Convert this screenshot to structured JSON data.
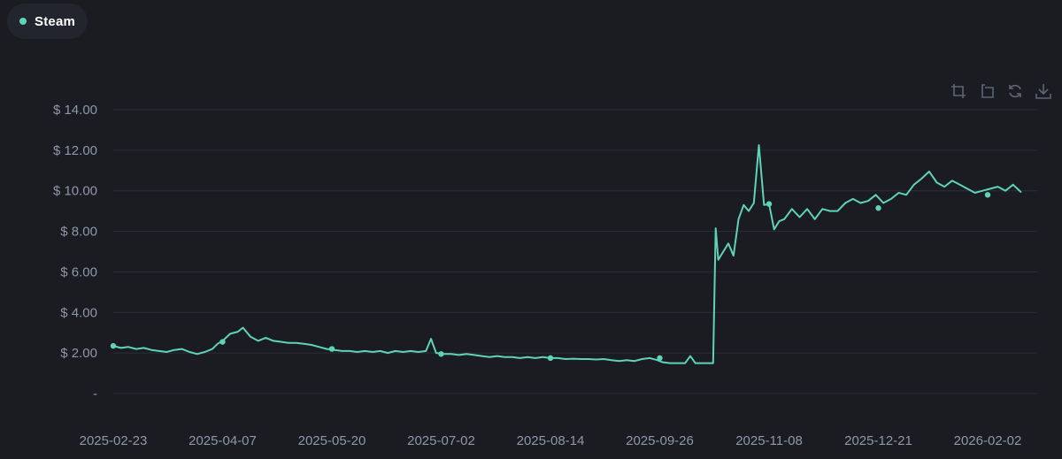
{
  "legend": {
    "label": "Steam",
    "color": "#5fd3b8"
  },
  "toolbox": [
    {
      "icon": "zoom-area-icon"
    },
    {
      "icon": "zoom-reset-icon"
    },
    {
      "icon": "restore-icon"
    },
    {
      "icon": "download-icon"
    }
  ],
  "colors": {
    "line": "#5fd3b8",
    "grid": "#2b2e37",
    "axis_text": "#8f97ab",
    "background": "#1a1c22"
  },
  "chart_data": {
    "type": "line",
    "series": [
      {
        "name": "Steam",
        "values": [
          [
            "2025-02-23",
            2.35
          ],
          [
            "2025-02-26",
            2.25
          ],
          [
            "2025-03-01",
            2.3
          ],
          [
            "2025-03-04",
            2.2
          ],
          [
            "2025-03-07",
            2.25
          ],
          [
            "2025-03-10",
            2.15
          ],
          [
            "2025-03-13",
            2.1
          ],
          [
            "2025-03-16",
            2.05
          ],
          [
            "2025-03-19",
            2.15
          ],
          [
            "2025-03-22",
            2.2
          ],
          [
            "2025-03-25",
            2.05
          ],
          [
            "2025-03-28",
            1.95
          ],
          [
            "2025-03-31",
            2.05
          ],
          [
            "2025-04-03",
            2.2
          ],
          [
            "2025-04-05",
            2.45
          ],
          [
            "2025-04-07",
            2.6
          ],
          [
            "2025-04-10",
            2.95
          ],
          [
            "2025-04-13",
            3.05
          ],
          [
            "2025-04-15",
            3.25
          ],
          [
            "2025-04-18",
            2.8
          ],
          [
            "2025-04-21",
            2.6
          ],
          [
            "2025-04-24",
            2.75
          ],
          [
            "2025-04-27",
            2.6
          ],
          [
            "2025-04-30",
            2.55
          ],
          [
            "2025-05-03",
            2.5
          ],
          [
            "2025-05-06",
            2.5
          ],
          [
            "2025-05-09",
            2.45
          ],
          [
            "2025-05-12",
            2.4
          ],
          [
            "2025-05-15",
            2.3
          ],
          [
            "2025-05-18",
            2.2
          ],
          [
            "2025-05-21",
            2.15
          ],
          [
            "2025-05-24",
            2.1
          ],
          [
            "2025-05-27",
            2.1
          ],
          [
            "2025-05-30",
            2.05
          ],
          [
            "2025-06-02",
            2.1
          ],
          [
            "2025-06-05",
            2.05
          ],
          [
            "2025-06-08",
            2.1
          ],
          [
            "2025-06-11",
            2.0
          ],
          [
            "2025-06-14",
            2.1
          ],
          [
            "2025-06-17",
            2.05
          ],
          [
            "2025-06-20",
            2.1
          ],
          [
            "2025-06-23",
            2.05
          ],
          [
            "2025-06-26",
            2.1
          ],
          [
            "2025-06-28",
            2.7
          ],
          [
            "2025-06-30",
            2.0
          ],
          [
            "2025-07-03",
            1.95
          ],
          [
            "2025-07-06",
            1.95
          ],
          [
            "2025-07-09",
            1.9
          ],
          [
            "2025-07-12",
            1.95
          ],
          [
            "2025-07-15",
            1.9
          ],
          [
            "2025-07-18",
            1.85
          ],
          [
            "2025-07-21",
            1.8
          ],
          [
            "2025-07-24",
            1.85
          ],
          [
            "2025-07-27",
            1.8
          ],
          [
            "2025-07-30",
            1.8
          ],
          [
            "2025-08-02",
            1.75
          ],
          [
            "2025-08-05",
            1.8
          ],
          [
            "2025-08-08",
            1.75
          ],
          [
            "2025-08-11",
            1.8
          ],
          [
            "2025-08-14",
            1.75
          ],
          [
            "2025-08-17",
            1.75
          ],
          [
            "2025-08-20",
            1.7
          ],
          [
            "2025-08-23",
            1.72
          ],
          [
            "2025-08-26",
            1.7
          ],
          [
            "2025-08-29",
            1.7
          ],
          [
            "2025-09-01",
            1.68
          ],
          [
            "2025-09-04",
            1.7
          ],
          [
            "2025-09-07",
            1.65
          ],
          [
            "2025-09-10",
            1.6
          ],
          [
            "2025-09-13",
            1.65
          ],
          [
            "2025-09-16",
            1.6
          ],
          [
            "2025-09-19",
            1.7
          ],
          [
            "2025-09-22",
            1.75
          ],
          [
            "2025-09-25",
            1.65
          ],
          [
            "2025-09-27",
            1.55
          ],
          [
            "2025-09-30",
            1.5
          ],
          [
            "2025-10-03",
            1.5
          ],
          [
            "2025-10-06",
            1.5
          ],
          [
            "2025-10-08",
            1.85
          ],
          [
            "2025-10-10",
            1.5
          ],
          [
            "2025-10-13",
            1.5
          ],
          [
            "2025-10-16",
            1.5
          ],
          [
            "2025-10-17",
            1.5
          ],
          [
            "2025-10-18",
            8.15
          ],
          [
            "2025-10-19",
            6.6
          ],
          [
            "2025-10-21",
            7.0
          ],
          [
            "2025-10-23",
            7.4
          ],
          [
            "2025-10-25",
            6.8
          ],
          [
            "2025-10-27",
            8.6
          ],
          [
            "2025-10-29",
            9.3
          ],
          [
            "2025-10-31",
            9.0
          ],
          [
            "2025-11-02",
            9.4
          ],
          [
            "2025-11-04",
            12.25
          ],
          [
            "2025-11-06",
            9.3
          ],
          [
            "2025-11-08",
            9.35
          ],
          [
            "2025-11-10",
            8.1
          ],
          [
            "2025-11-12",
            8.5
          ],
          [
            "2025-11-14",
            8.6
          ],
          [
            "2025-11-17",
            9.1
          ],
          [
            "2025-11-20",
            8.7
          ],
          [
            "2025-11-23",
            9.1
          ],
          [
            "2025-11-26",
            8.6
          ],
          [
            "2025-11-29",
            9.1
          ],
          [
            "2025-12-02",
            9.0
          ],
          [
            "2025-12-05",
            9.0
          ],
          [
            "2025-12-08",
            9.4
          ],
          [
            "2025-12-11",
            9.6
          ],
          [
            "2025-12-14",
            9.4
          ],
          [
            "2025-12-17",
            9.5
          ],
          [
            "2025-12-20",
            9.8
          ],
          [
            "2025-12-23",
            9.4
          ],
          [
            "2025-12-26",
            9.6
          ],
          [
            "2025-12-29",
            9.9
          ],
          [
            "2026-01-01",
            9.8
          ],
          [
            "2026-01-04",
            10.3
          ],
          [
            "2026-01-07",
            10.6
          ],
          [
            "2026-01-10",
            10.95
          ],
          [
            "2026-01-13",
            10.4
          ],
          [
            "2026-01-16",
            10.2
          ],
          [
            "2026-01-19",
            10.5
          ],
          [
            "2026-01-22",
            10.3
          ],
          [
            "2026-01-25",
            10.1
          ],
          [
            "2026-01-28",
            9.9
          ],
          [
            "2026-01-31",
            10.0
          ],
          [
            "2026-02-03",
            10.1
          ],
          [
            "2026-02-06",
            10.2
          ],
          [
            "2026-02-09",
            10.0
          ],
          [
            "2026-02-12",
            10.3
          ],
          [
            "2026-02-15",
            9.95
          ]
        ],
        "markers": [
          [
            "2025-02-23",
            2.35
          ],
          [
            "2025-04-07",
            2.55
          ],
          [
            "2025-05-20",
            2.2
          ],
          [
            "2025-07-02",
            1.95
          ],
          [
            "2025-08-14",
            1.75
          ],
          [
            "2025-09-26",
            1.75
          ],
          [
            "2025-11-08",
            9.35
          ],
          [
            "2025-12-21",
            9.15
          ],
          [
            "2026-02-02",
            9.8
          ]
        ]
      }
    ],
    "x_tick_labels": [
      "2025-02-23",
      "2025-04-07",
      "2025-05-20",
      "2025-07-02",
      "2025-08-14",
      "2025-09-26",
      "2025-11-08",
      "2025-12-21",
      "2026-02-02"
    ],
    "y_tick_labels": [
      "-",
      "$ 2.00",
      "$ 4.00",
      "$ 6.00",
      "$ 8.00",
      "$ 10.00",
      "$ 12.00",
      "$ 14.00"
    ],
    "y_ticks": [
      0,
      2,
      4,
      6,
      8,
      10,
      12,
      14
    ],
    "ylim": [
      0,
      14
    ],
    "xlim": [
      "2025-02-23",
      "2026-02-15"
    ],
    "grid": true,
    "legend_position": "top-left"
  }
}
